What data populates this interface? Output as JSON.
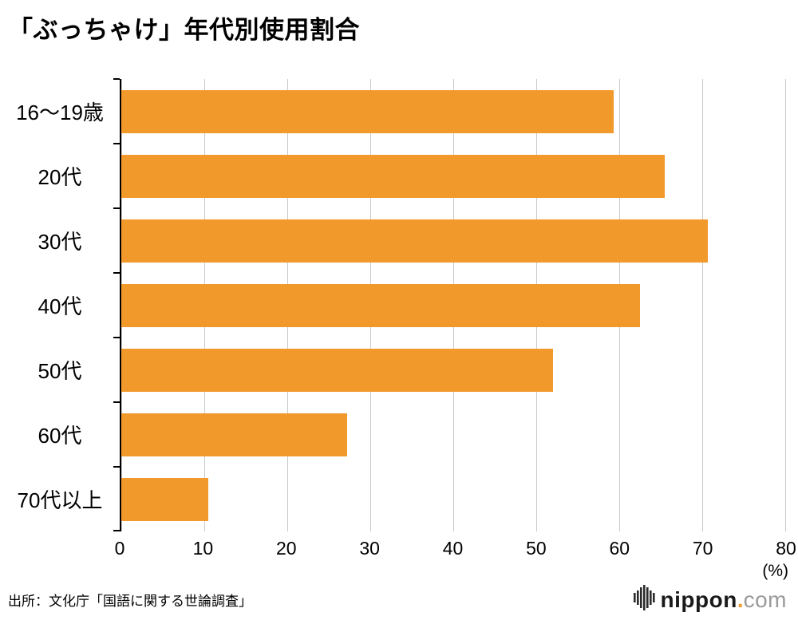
{
  "title": "「ぶっちゃけ」年代別使用割合",
  "chart_data": {
    "type": "bar",
    "orientation": "horizontal",
    "title": "「ぶっちゃけ」年代別使用割合",
    "categories": [
      "16〜19歳",
      "20代",
      "30代",
      "40代",
      "50代",
      "60代",
      "70代以上"
    ],
    "values": [
      59.3,
      65.5,
      70.7,
      62.5,
      52.0,
      27.2,
      10.5
    ],
    "xlim": [
      0,
      80
    ],
    "xticks": [
      "0",
      "10",
      "20",
      "30",
      "40",
      "50",
      "60",
      "70",
      "80"
    ],
    "x_unit": "(%)",
    "grid": true,
    "legend": "none",
    "bar_color": "#f2992c",
    "grid_color": "#c9c9c9"
  },
  "footer": {
    "source": "出所：文化庁「国語に関する世論調査」",
    "logo": {
      "name": "nippon",
      "dot": ".",
      "tld": "com"
    }
  }
}
